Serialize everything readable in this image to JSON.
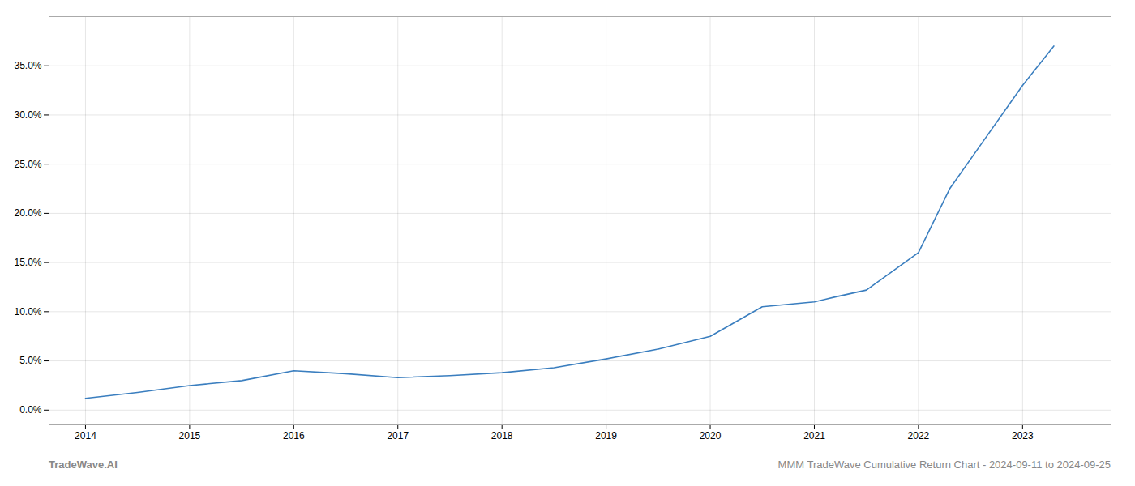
{
  "chart_data": {
    "type": "line",
    "annotations": [
      "TradeWave.AI",
      "MMM TradeWave Cumulative Return Chart - 2024-09-11 to 2024-09-25"
    ],
    "x": [
      2014.0,
      2014.5,
      2015.0,
      2015.5,
      2016.0,
      2016.5,
      2017.0,
      2017.5,
      2018.0,
      2018.5,
      2019.0,
      2019.5,
      2020.0,
      2020.5,
      2021.0,
      2021.2,
      2021.5,
      2022.0,
      2022.3,
      2022.6,
      2023.0,
      2023.3
    ],
    "values": [
      1.2,
      1.8,
      2.5,
      3.0,
      4.0,
      3.7,
      3.3,
      3.5,
      3.8,
      4.3,
      5.2,
      6.2,
      7.5,
      10.5,
      11.0,
      11.5,
      12.2,
      16.0,
      22.5,
      27.0,
      33.0,
      37.0
    ],
    "color": "#3a7ebf",
    "xlim": [
      2013.65,
      2023.85
    ],
    "xticks": [
      2014,
      2015,
      2016,
      2017,
      2018,
      2019,
      2020,
      2021,
      2022,
      2023
    ],
    "ylim": [
      -1.5,
      40.0
    ],
    "yticks": [
      {
        "value": 0,
        "label": "0.0%"
      },
      {
        "value": 5,
        "label": "5.0%"
      },
      {
        "value": 10,
        "label": "10.0%"
      },
      {
        "value": 15,
        "label": "15.0%"
      },
      {
        "value": 20,
        "label": "20.0%"
      },
      {
        "value": 25,
        "label": "25.0%"
      },
      {
        "value": 30,
        "label": "30.0%"
      },
      {
        "value": 35,
        "label": "35.0%"
      }
    ],
    "grid": true
  }
}
